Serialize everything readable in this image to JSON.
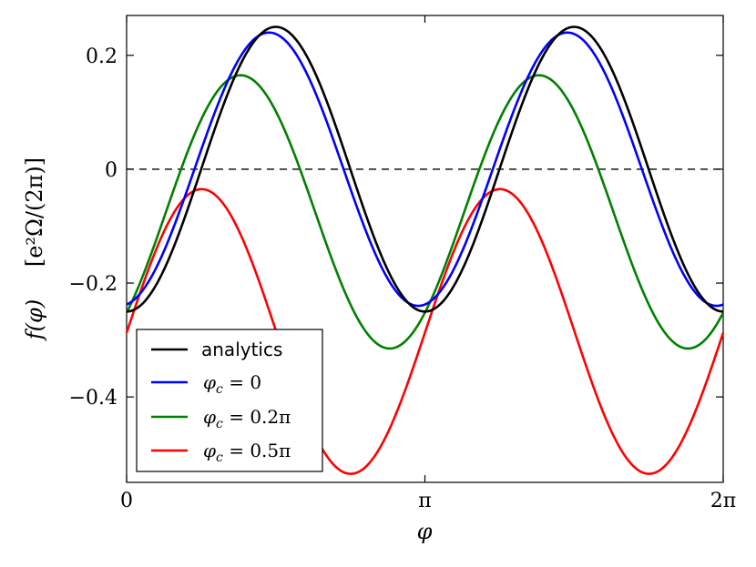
{
  "chart_data": {
    "type": "line",
    "xlabel": "φ",
    "ylabel_main": "f(φ)",
    "ylabel_units": "[e²Ω/(2π)]",
    "xlim": [
      0,
      6.283185
    ],
    "ylim": [
      -0.55,
      0.27
    ],
    "x_ticks": [
      {
        "value": 0,
        "label": "0"
      },
      {
        "value": 3.141593,
        "label": "π"
      },
      {
        "value": 6.283185,
        "label": "2π"
      }
    ],
    "y_ticks": [
      {
        "value": 0.2,
        "label": "0.2"
      },
      {
        "value": 0,
        "label": "0"
      },
      {
        "value": -0.2,
        "label": "−0.2"
      },
      {
        "value": -0.4,
        "label": "−0.4"
      }
    ],
    "reference_line": {
      "y": 0,
      "style": "dashed",
      "color": "#000000"
    },
    "legend": {
      "position": "lower-left"
    },
    "series": [
      {
        "name": "analytics",
        "color": "#000000",
        "offset": 0.0,
        "amplitude": 0.25,
        "peaks_at_x": [
          1.571,
          4.712
        ],
        "troughs_at_x": [
          0.0,
          3.142,
          6.283
        ]
      },
      {
        "name": "φc = 0",
        "color": "#0000ff",
        "offset": 0.0,
        "amplitude": 0.24,
        "peaks_at_x": [
          1.5,
          4.64
        ],
        "troughs_at_x": [
          3.07,
          6.21
        ]
      },
      {
        "name": "φc = 0.2π",
        "color": "#008000",
        "offset": -0.075,
        "amplitude": 0.24,
        "peaks_at_x": [
          1.2,
          4.34
        ],
        "troughs_at_x": [
          2.77,
          5.91
        ]
      },
      {
        "name": "φc = 0.5π",
        "color": "#ff0000",
        "offset": -0.285,
        "amplitude": 0.25,
        "peaks_at_x": [
          0.79,
          3.93
        ],
        "troughs_at_x": [
          2.36,
          5.5
        ]
      }
    ]
  },
  "legend_labels": {
    "analytics": "analytics",
    "phic0_sym": "φ",
    "phic0_sub": "c",
    "phic0_rest": " = 0",
    "phic02_sym": "φ",
    "phic02_sub": "c",
    "phic02_rest": " = 0.2π",
    "phic05_sym": "φ",
    "phic05_sub": "c",
    "phic05_rest": " = 0.5π"
  }
}
